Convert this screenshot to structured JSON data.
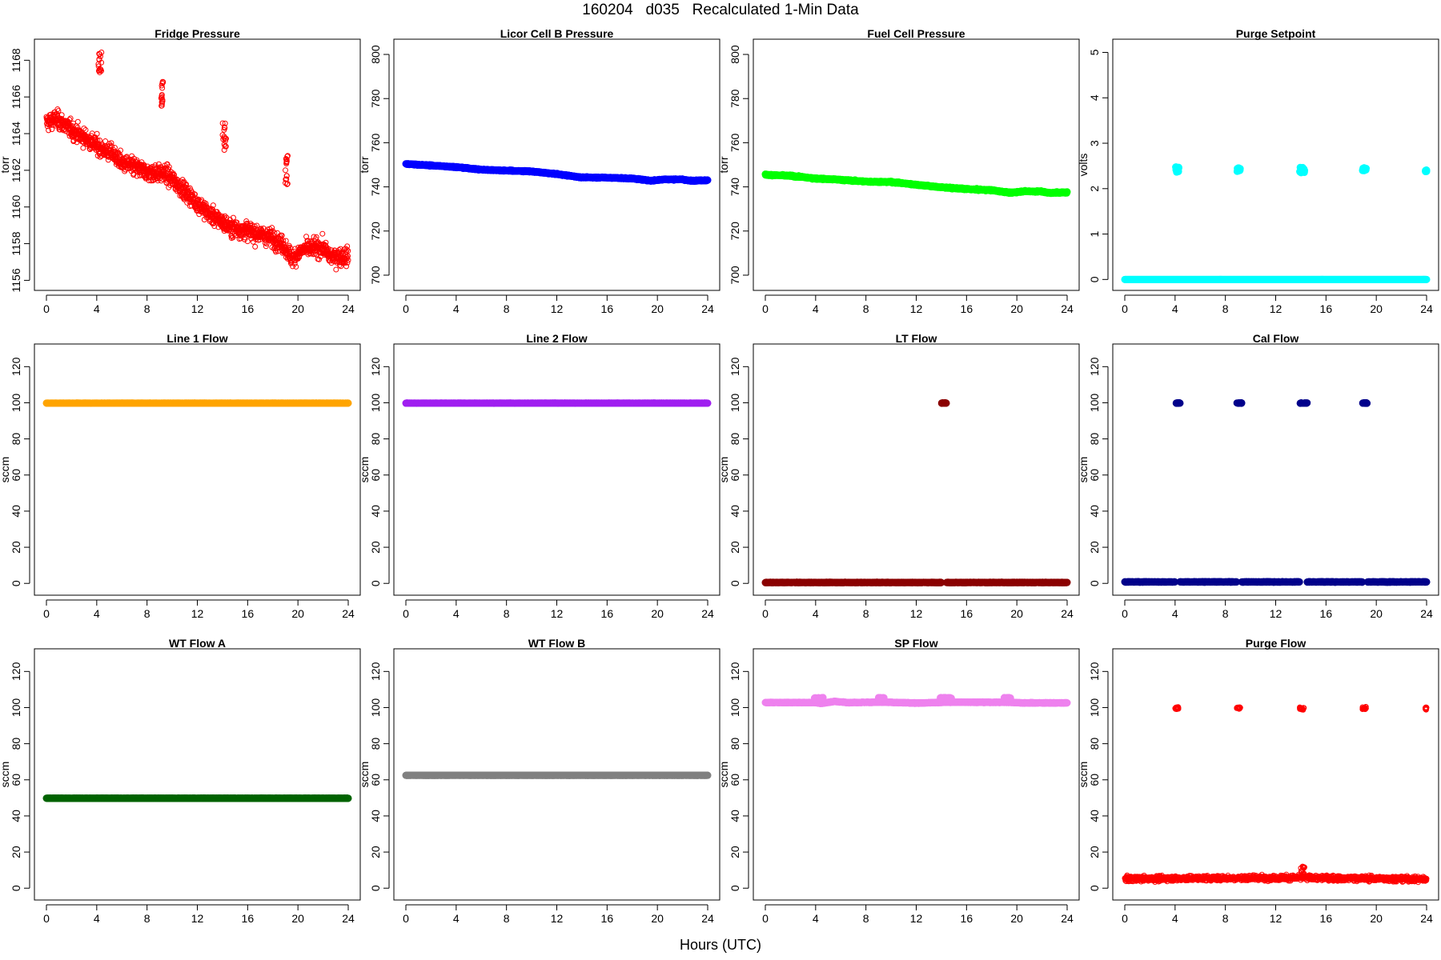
{
  "figure": {
    "title": "160204   d035   Recalculated 1-Min Data",
    "xlabel": "Hours (UTC)"
  },
  "chart_data": [
    {
      "type": "scatter",
      "title": "Fridge Pressure",
      "xlabel": "",
      "ylabel": "torr",
      "xlim": [
        0,
        24
      ],
      "ylim": [
        1155.8,
        1168.8
      ],
      "xticks": [
        0,
        4,
        8,
        12,
        16,
        20,
        24
      ],
      "yticks": [
        1156,
        1158,
        1160,
        1162,
        1164,
        1166,
        1168
      ],
      "grid": false,
      "legend": "none",
      "color": "#ff0000",
      "marker": "open-circle",
      "series": [
        {
          "trend": [
            [
              0,
              1164.6
            ],
            [
              0.8,
              1164.8
            ],
            [
              2,
              1164.2
            ],
            [
              3.7,
              1163.5
            ],
            [
              4.3,
              1163.2
            ],
            [
              5.3,
              1162.9
            ],
            [
              6,
              1162.4
            ],
            [
              8,
              1161.9
            ],
            [
              9.5,
              1161.8
            ],
            [
              10.5,
              1161.2
            ],
            [
              12,
              1160.2
            ],
            [
              13,
              1159.6
            ],
            [
              14.6,
              1158.9
            ],
            [
              16,
              1158.7
            ],
            [
              18,
              1158.3
            ],
            [
              18.9,
              1157.9
            ],
            [
              19.5,
              1157.2
            ],
            [
              20.5,
              1157.7
            ],
            [
              22,
              1157.8
            ],
            [
              22.5,
              1157.3
            ],
            [
              24,
              1157.3
            ]
          ],
          "noise": 0.5
        },
        {
          "spikes": [
            {
              "x": [
                4.1,
                4.4
              ],
              "y": [
                1167.2,
                1168.5
              ]
            },
            {
              "x": [
                9.1,
                9.3
              ],
              "y": [
                1165.5,
                1167.0
              ]
            },
            {
              "x": [
                14.0,
                14.3
              ],
              "y": [
                1162.9,
                1164.7
              ]
            },
            {
              "x": [
                19.0,
                19.2
              ],
              "y": [
                1161.2,
                1162.8
              ]
            }
          ]
        }
      ]
    },
    {
      "type": "scatter",
      "title": "Licor Cell B Pressure",
      "xlabel": "",
      "ylabel": "torr",
      "xlim": [
        0,
        24
      ],
      "ylim": [
        696,
        804
      ],
      "xticks": [
        0,
        4,
        8,
        12,
        16,
        20,
        24
      ],
      "yticks": [
        700,
        720,
        740,
        760,
        780,
        800
      ],
      "grid": false,
      "legend": "none",
      "color": "#0000ff",
      "marker": "filled-circle",
      "series": [
        {
          "trend": [
            [
              0,
              750.4
            ],
            [
              4,
              749.0
            ],
            [
              6,
              747.8
            ],
            [
              8,
              747.4
            ],
            [
              10,
              747.0
            ],
            [
              12,
              745.8
            ],
            [
              14,
              744.3
            ],
            [
              16,
              744.2
            ],
            [
              18,
              743.8
            ],
            [
              19.5,
              742.8
            ],
            [
              20.5,
              743.4
            ],
            [
              22,
              743.4
            ],
            [
              22.5,
              742.8
            ],
            [
              24,
              743.0
            ]
          ],
          "noise": 0.25
        }
      ]
    },
    {
      "type": "scatter",
      "title": "Fuel Cell Pressure",
      "xlabel": "",
      "ylabel": "torr",
      "xlim": [
        0,
        24
      ],
      "ylim": [
        696,
        804
      ],
      "xticks": [
        0,
        4,
        8,
        12,
        16,
        20,
        24
      ],
      "yticks": [
        700,
        720,
        740,
        760,
        780,
        800
      ],
      "grid": false,
      "legend": "none",
      "color": "#00ff00",
      "marker": "filled-circle",
      "series": [
        {
          "trend": [
            [
              0,
              745.5
            ],
            [
              2,
              745.0
            ],
            [
              4,
              743.8
            ],
            [
              6,
              743.2
            ],
            [
              8,
              742.4
            ],
            [
              10,
              742.2
            ],
            [
              12,
              741.0
            ],
            [
              14,
              739.8
            ],
            [
              16,
              739.0
            ],
            [
              18,
              738.5
            ],
            [
              19.5,
              737.3
            ],
            [
              20.5,
              738.0
            ],
            [
              22,
              737.9
            ],
            [
              22.5,
              737.3
            ],
            [
              24,
              737.5
            ]
          ],
          "noise": 0.3
        }
      ]
    },
    {
      "type": "scatter",
      "title": "Purge Setpoint",
      "xlabel": "",
      "ylabel": "volts",
      "xlim": [
        0,
        24
      ],
      "ylim": [
        -0.1,
        5.15
      ],
      "xticks": [
        0,
        4,
        8,
        12,
        16,
        20,
        24
      ],
      "yticks": [
        0,
        1,
        2,
        3,
        4,
        5
      ],
      "grid": false,
      "legend": "none",
      "color": "#00ffff",
      "marker": "filled-circle",
      "series": [
        {
          "trend": [
            [
              0,
              0
            ],
            [
              24,
              0
            ]
          ],
          "noise": 0
        },
        {
          "spikes": [
            {
              "x": [
                4.0,
                4.3
              ],
              "y": [
                2.36,
                2.48
              ]
            },
            {
              "x": [
                8.9,
                9.2
              ],
              "y": [
                2.38,
                2.46
              ]
            },
            {
              "x": [
                13.9,
                14.3
              ],
              "y": [
                2.35,
                2.48
              ]
            },
            {
              "x": [
                18.9,
                19.2
              ],
              "y": [
                2.39,
                2.46
              ]
            },
            {
              "x": [
                23.9,
                24.0
              ],
              "y": [
                2.37,
                2.42
              ]
            }
          ]
        }
      ]
    },
    {
      "type": "scatter",
      "title": "Line 1 Flow",
      "xlabel": "",
      "ylabel": "sccm",
      "xlim": [
        0,
        24
      ],
      "ylim": [
        -3,
        129
      ],
      "xticks": [
        0,
        4,
        8,
        12,
        16,
        20,
        24
      ],
      "yticks": [
        0,
        20,
        40,
        60,
        80,
        100,
        120
      ],
      "grid": false,
      "legend": "none",
      "color": "#ffa500",
      "marker": "filled-circle",
      "series": [
        {
          "trend": [
            [
              0,
              99.8
            ],
            [
              24,
              99.8
            ]
          ],
          "noise": 0.05
        }
      ]
    },
    {
      "type": "scatter",
      "title": "Line 2 Flow",
      "xlabel": "",
      "ylabel": "sccm",
      "xlim": [
        0,
        24
      ],
      "ylim": [
        -3,
        129
      ],
      "xticks": [
        0,
        4,
        8,
        12,
        16,
        20,
        24
      ],
      "yticks": [
        0,
        20,
        40,
        60,
        80,
        100,
        120
      ],
      "grid": false,
      "legend": "none",
      "color": "#a020f0",
      "marker": "filled-circle",
      "series": [
        {
          "trend": [
            [
              0,
              99.8
            ],
            [
              24,
              99.8
            ]
          ],
          "noise": 0.05
        }
      ]
    },
    {
      "type": "scatter",
      "title": "LT Flow",
      "xlabel": "",
      "ylabel": "sccm",
      "xlim": [
        0,
        24
      ],
      "ylim": [
        -3,
        129
      ],
      "xticks": [
        0,
        4,
        8,
        12,
        16,
        20,
        24
      ],
      "yticks": [
        0,
        20,
        40,
        60,
        80,
        100,
        120
      ],
      "grid": false,
      "legend": "none",
      "color": "#8b0000",
      "marker": "filled-circle",
      "series": [
        {
          "trend": [
            [
              0,
              0.5
            ],
            [
              24,
              0.5
            ]
          ],
          "noise": 0.15,
          "gaps": [
            [
              14.0,
              14.4
            ]
          ]
        },
        {
          "spikes": [
            {
              "x": [
                14.0,
                14.4
              ],
              "y": [
                99.7,
                100.0
              ]
            }
          ]
        }
      ]
    },
    {
      "type": "scatter",
      "title": "Cal Flow",
      "xlabel": "",
      "ylabel": "sccm",
      "xlim": [
        0,
        24
      ],
      "ylim": [
        -3,
        129
      ],
      "xticks": [
        0,
        4,
        8,
        12,
        16,
        20,
        24
      ],
      "yticks": [
        0,
        20,
        40,
        60,
        80,
        100,
        120
      ],
      "grid": false,
      "legend": "none",
      "color": "#00008b",
      "marker": "filled-circle",
      "series": [
        {
          "trend": [
            [
              0,
              0.8
            ],
            [
              24,
              0.8
            ]
          ],
          "noise": 0.15,
          "gaps": [
            [
              4.0,
              4.4
            ],
            [
              8.9,
              9.3
            ],
            [
              13.9,
              14.5
            ],
            [
              18.9,
              19.3
            ]
          ]
        },
        {
          "spikes": [
            {
              "x": [
                4.0,
                4.4
              ],
              "y": [
                99.7,
                100.0
              ]
            },
            {
              "x": [
                8.9,
                9.3
              ],
              "y": [
                99.7,
                100.0
              ]
            },
            {
              "x": [
                13.9,
                14.5
              ],
              "y": [
                99.7,
                100.0
              ]
            },
            {
              "x": [
                18.9,
                19.3
              ],
              "y": [
                99.7,
                100.0
              ]
            }
          ]
        }
      ]
    },
    {
      "type": "scatter",
      "title": "WT Flow A",
      "xlabel": "",
      "ylabel": "sccm",
      "xlim": [
        0,
        24
      ],
      "ylim": [
        -3,
        129
      ],
      "xticks": [
        0,
        4,
        8,
        12,
        16,
        20,
        24
      ],
      "yticks": [
        0,
        20,
        40,
        60,
        80,
        100,
        120
      ],
      "grid": false,
      "legend": "none",
      "color": "#006400",
      "marker": "filled-circle",
      "series": [
        {
          "trend": [
            [
              0,
              49.8
            ],
            [
              24,
              49.8
            ]
          ],
          "noise": 0.05
        }
      ]
    },
    {
      "type": "scatter",
      "title": "WT Flow B",
      "xlabel": "",
      "ylabel": "sccm",
      "xlim": [
        0,
        24
      ],
      "ylim": [
        -3,
        129
      ],
      "xticks": [
        0,
        4,
        8,
        12,
        16,
        20,
        24
      ],
      "yticks": [
        0,
        20,
        40,
        60,
        80,
        100,
        120
      ],
      "grid": false,
      "legend": "none",
      "color": "#808080",
      "marker": "filled-circle",
      "series": [
        {
          "trend": [
            [
              0,
              62.5
            ],
            [
              24,
              62.5
            ]
          ],
          "noise": 0.05
        }
      ]
    },
    {
      "type": "scatter",
      "title": "SP Flow",
      "xlabel": "",
      "ylabel": "sccm",
      "xlim": [
        0,
        24
      ],
      "ylim": [
        -3,
        129
      ],
      "xticks": [
        0,
        4,
        8,
        12,
        16,
        20,
        24
      ],
      "yticks": [
        0,
        20,
        40,
        60,
        80,
        100,
        120
      ],
      "grid": false,
      "legend": "none",
      "color": "#ee82ee",
      "marker": "filled-circle",
      "series": [
        {
          "trend": [
            [
              0,
              102.8
            ],
            [
              4,
              102.8
            ],
            [
              4.4,
              102.3
            ],
            [
              5.5,
              103.4
            ],
            [
              6.5,
              102.8
            ],
            [
              9.5,
              103.0
            ],
            [
              12,
              102.5
            ],
            [
              14.6,
              103.0
            ],
            [
              19.5,
              102.9
            ],
            [
              20.5,
              102.6
            ],
            [
              24,
              102.6
            ]
          ],
          "noise": 0.2
        },
        {
          "spikes": [
            {
              "x": [
                3.9,
                4.6
              ],
              "y": [
                105.2,
                105.6
              ]
            },
            {
              "x": [
                9.0,
                9.5
              ],
              "y": [
                105.2,
                105.6
              ]
            },
            {
              "x": [
                13.9,
                14.8
              ],
              "y": [
                105.2,
                105.6
              ]
            },
            {
              "x": [
                19.0,
                19.5
              ],
              "y": [
                105.2,
                105.6
              ]
            }
          ]
        }
      ]
    },
    {
      "type": "scatter",
      "title": "Purge Flow",
      "xlabel": "",
      "ylabel": "sccm",
      "xlim": [
        0,
        24
      ],
      "ylim": [
        -3,
        129
      ],
      "xticks": [
        0,
        4,
        8,
        12,
        16,
        20,
        24
      ],
      "yticks": [
        0,
        20,
        40,
        60,
        80,
        100,
        120
      ],
      "grid": false,
      "legend": "none",
      "color": "#ff0000",
      "marker": "open-circle",
      "series": [
        {
          "trend": [
            [
              0,
              5.2
            ],
            [
              8,
              5.6
            ],
            [
              14,
              5.8
            ],
            [
              24,
              5.0
            ]
          ],
          "noise": 1.5
        },
        {
          "spikes": [
            {
              "x": [
                4.0,
                4.3
              ],
              "y": [
                99.0,
                100.5
              ]
            },
            {
              "x": [
                8.9,
                9.2
              ],
              "y": [
                99.2,
                100.2
              ]
            },
            {
              "x": [
                13.9,
                14.3
              ],
              "y": [
                98.5,
                100.5
              ]
            },
            {
              "x": [
                18.9,
                19.2
              ],
              "y": [
                99.0,
                100.5
              ]
            },
            {
              "x": [
                23.9,
                24.0
              ],
              "y": [
                98.8,
                100.2
              ]
            },
            {
              "x": [
                14.0,
                14.3
              ],
              "y": [
                6.0,
                13.0
              ]
            }
          ]
        }
      ]
    }
  ]
}
